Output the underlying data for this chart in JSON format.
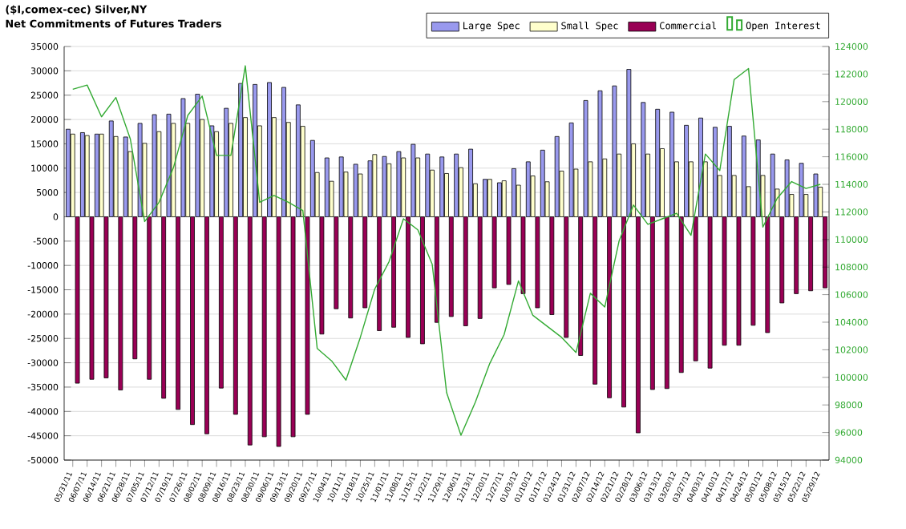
{
  "chart_data": {
    "type": "bar",
    "title": "($I,comex-cec) Silver,NY",
    "subtitle": "Net Commitments of Futures Traders",
    "categories": [
      "05/31/11",
      "06/07/11",
      "06/14/11",
      "06/21/11",
      "06/28/11",
      "07/05/11",
      "07/12/11",
      "07/19/11",
      "07/26/11",
      "08/02/11",
      "08/09/11",
      "08/16/11",
      "08/23/11",
      "08/30/11",
      "09/06/11",
      "09/13/11",
      "09/20/11",
      "09/27/11",
      "10/04/11",
      "10/11/11",
      "10/18/11",
      "10/25/11",
      "11/01/11",
      "11/08/11",
      "11/15/11",
      "11/22/11",
      "11/29/11",
      "12/06/11",
      "12/13/11",
      "12/20/11",
      "12/27/11",
      "01/03/12",
      "01/10/12",
      "01/17/12",
      "01/24/12",
      "01/31/12",
      "02/07/12",
      "02/14/12",
      "02/21/12",
      "02/28/12",
      "03/06/12",
      "03/13/12",
      "03/20/12",
      "03/27/12",
      "04/03/12",
      "04/10/12",
      "04/17/12",
      "04/24/12",
      "05/01/12",
      "05/08/12",
      "05/15/12",
      "05/22/12",
      "05/29/12"
    ],
    "series": [
      {
        "name": "Large Spec",
        "color": "#9999ee",
        "values": [
          18000,
          17300,
          17000,
          19700,
          16400,
          19200,
          21000,
          21100,
          24300,
          25200,
          18700,
          22300,
          27400,
          27200,
          27600,
          26600,
          23000,
          15700,
          12100,
          12300,
          10800,
          11500,
          12400,
          13400,
          14900,
          12900,
          12300,
          12900,
          13900,
          7700,
          7000,
          9900,
          11300,
          13700,
          16500,
          19300,
          23900,
          25900,
          26900,
          30300,
          23500,
          22100,
          21500,
          18800,
          20300,
          18400,
          18600,
          16600,
          15800,
          12900,
          11700,
          11000,
          8800
        ]
      },
      {
        "name": "Small Spec",
        "color": "#ffffcc",
        "values": [
          17000,
          16700,
          17000,
          16500,
          13400,
          15100,
          17500,
          19200,
          19200,
          20000,
          17500,
          19200,
          20400,
          18700,
          20400,
          19400,
          18600,
          9100,
          7300,
          9200,
          8800,
          12800,
          10900,
          12100,
          12100,
          9600,
          8900,
          10100,
          6800,
          7700,
          7400,
          6500,
          8400,
          7200,
          9400,
          9800,
          11300,
          11900,
          12900,
          15000,
          12900,
          14000,
          11300,
          11300,
          11300,
          8500,
          8500,
          6200,
          8500,
          5700,
          4600,
          4600,
          6100
        ]
      },
      {
        "name": "Commercial",
        "color": "#990055",
        "values": [
          -34200,
          -33400,
          -33100,
          -35600,
          -29200,
          -33400,
          -37300,
          -39600,
          -42700,
          -44600,
          -35200,
          -40600,
          -46900,
          -45200,
          -47200,
          -45200,
          -40600,
          -24100,
          -18900,
          -20800,
          -18700,
          -23400,
          -22700,
          -24800,
          -26100,
          -21700,
          -20500,
          -22400,
          -20900,
          -14600,
          -13900,
          -15800,
          -18700,
          -20100,
          -24800,
          -28500,
          -34400,
          -37200,
          -39100,
          -44400,
          -35500,
          -35300,
          -32000,
          -29600,
          -31100,
          -26400,
          -26400,
          -22300,
          -23800,
          -17700,
          -15800,
          -15200,
          -14600
        ]
      },
      {
        "name": "Open Interest",
        "type": "line",
        "axis": "y2",
        "color": "#33aa33",
        "values": [
          120900,
          121200,
          118900,
          120300,
          117300,
          111300,
          112700,
          115200,
          119000,
          120400,
          116100,
          116100,
          122600,
          112700,
          113200,
          112700,
          112100,
          102100,
          101200,
          99800,
          102900,
          106400,
          108400,
          111500,
          110700,
          108200,
          98900,
          95800,
          98200,
          101000,
          103100,
          107000,
          104500,
          103700,
          102900,
          101800,
          106100,
          105100,
          109900,
          112500,
          111100,
          111500,
          111900,
          110300,
          116200,
          115000,
          121600,
          122400,
          110900,
          113000,
          114200,
          113700,
          114000
        ]
      }
    ],
    "ylim": [
      -50000,
      35000
    ],
    "yticks": [
      -50000,
      -45000,
      -40000,
      -35000,
      -30000,
      -25000,
      -20000,
      -15000,
      -10000,
      -5000,
      0,
      5000,
      10000,
      15000,
      20000,
      25000,
      30000,
      35000
    ],
    "y2lim": [
      94000,
      124000
    ],
    "y2ticks": [
      94000,
      96000,
      98000,
      100000,
      102000,
      104000,
      106000,
      108000,
      110000,
      112000,
      114000,
      116000,
      118000,
      120000,
      122000,
      124000
    ],
    "grid": "y",
    "legend": "top right"
  }
}
